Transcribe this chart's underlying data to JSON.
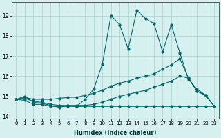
{
  "xlabel": "Humidex (Indice chaleur)",
  "bg_color": "#d6f0f0",
  "line_color": "#006666",
  "grid_color": "#b0d4d4",
  "xlim": [
    -0.5,
    23.5
  ],
  "ylim": [
    13.9,
    19.65
  ],
  "yticks": [
    14,
    15,
    16,
    17,
    18,
    19
  ],
  "xticks": [
    0,
    1,
    2,
    3,
    4,
    5,
    6,
    7,
    8,
    9,
    10,
    11,
    12,
    13,
    14,
    15,
    16,
    17,
    18,
    19,
    20,
    21,
    22,
    23
  ],
  "line1_x": [
    0,
    1,
    2,
    3,
    4,
    5,
    6,
    7,
    8,
    9,
    10,
    11,
    12,
    13,
    14,
    15,
    16,
    17,
    18,
    19,
    20,
    21,
    22,
    23
  ],
  "line1_y": [
    14.85,
    15.0,
    14.7,
    14.65,
    14.55,
    14.45,
    14.55,
    14.5,
    14.85,
    15.35,
    16.6,
    19.0,
    18.55,
    17.35,
    19.25,
    18.85,
    18.6,
    17.2,
    18.55,
    17.15,
    15.85,
    15.35,
    15.05,
    14.5
  ],
  "line2_x": [
    0,
    1,
    2,
    3,
    4,
    5,
    6,
    7,
    8,
    9,
    10,
    11,
    12,
    13,
    14,
    15,
    16,
    17,
    18,
    19,
    20,
    21,
    22,
    23
  ],
  "line2_y": [
    14.85,
    14.8,
    14.6,
    14.6,
    14.5,
    14.5,
    14.5,
    14.5,
    14.5,
    14.5,
    14.5,
    14.5,
    14.5,
    14.5,
    14.5,
    14.5,
    14.5,
    14.5,
    14.5,
    14.5,
    14.5,
    14.5,
    14.5,
    14.5
  ],
  "line3_x": [
    0,
    1,
    2,
    3,
    4,
    5,
    6,
    7,
    8,
    9,
    10,
    11,
    12,
    13,
    14,
    15,
    16,
    17,
    18,
    19,
    20,
    21,
    22,
    23
  ],
  "line3_y": [
    14.85,
    14.95,
    14.85,
    14.85,
    14.85,
    14.9,
    14.95,
    14.95,
    15.05,
    15.15,
    15.3,
    15.5,
    15.65,
    15.75,
    15.9,
    16.0,
    16.1,
    16.35,
    16.55,
    16.85,
    15.9,
    15.25,
    15.05,
    14.5
  ],
  "line4_x": [
    0,
    1,
    2,
    3,
    4,
    5,
    6,
    7,
    8,
    9,
    10,
    11,
    12,
    13,
    14,
    15,
    16,
    17,
    18,
    19,
    20,
    21,
    22,
    23
  ],
  "line4_y": [
    14.85,
    14.9,
    14.75,
    14.7,
    14.6,
    14.55,
    14.55,
    14.55,
    14.55,
    14.6,
    14.7,
    14.85,
    15.0,
    15.1,
    15.2,
    15.3,
    15.45,
    15.6,
    15.75,
    16.0,
    15.9,
    15.25,
    15.05,
    14.5
  ]
}
